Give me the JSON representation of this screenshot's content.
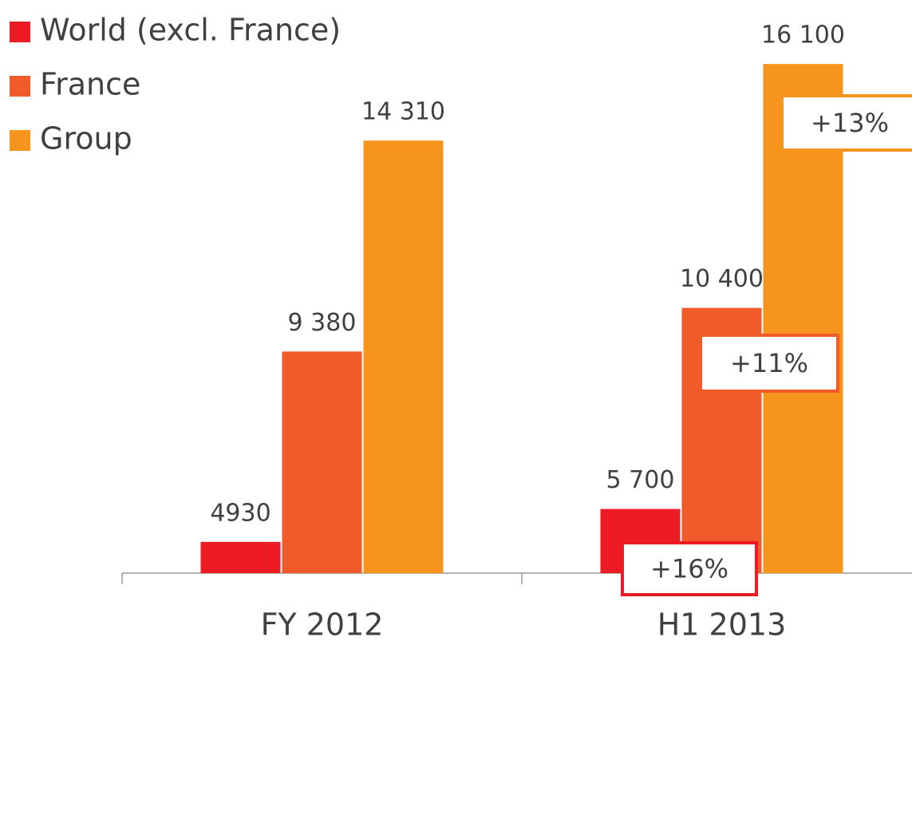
{
  "chart_data": {
    "type": "bar",
    "categories": [
      "FY 2012",
      "H1 2013"
    ],
    "series": [
      {
        "name": "World (excl. France)",
        "color": "#ed1c24",
        "values": [
          4930,
          5700
        ],
        "value_labels": [
          "4930",
          "5 700"
        ]
      },
      {
        "name": "France",
        "color": "#f15a29",
        "values": [
          9380,
          10400
        ],
        "value_labels": [
          "9 380",
          "10 400"
        ]
      },
      {
        "name": "Group",
        "color": "#f7941d",
        "values": [
          14310,
          16100
        ],
        "value_labels": [
          "14 310",
          "16 100"
        ]
      }
    ],
    "annotations": [
      "+16%",
      "+11%",
      "+13%"
    ],
    "ylim": [
      4200,
      16850
    ],
    "legend": "top-left"
  }
}
